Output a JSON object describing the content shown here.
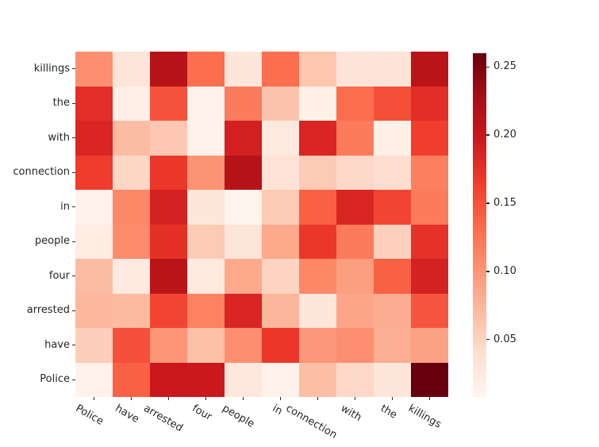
{
  "figure": {
    "background_color": "#ffffff",
    "text_color": "#262626"
  },
  "chart_data": {
    "type": "heatmap",
    "title": "",
    "xlabel": "",
    "ylabel": "",
    "x_labels": [
      "Police",
      "have",
      "arrested",
      "four",
      "people",
      "in",
      "connection",
      "with",
      "the",
      "killings"
    ],
    "y_labels": [
      "killings",
      "the",
      "with",
      "connection",
      "in",
      "people",
      "four",
      "arrested",
      "have",
      "Police"
    ],
    "values": [
      [
        0.105,
        0.032,
        0.214,
        0.131,
        0.03,
        0.131,
        0.062,
        0.033,
        0.034,
        0.211
      ],
      [
        0.176,
        0.017,
        0.15,
        0.012,
        0.12,
        0.063,
        0.016,
        0.13,
        0.152,
        0.177
      ],
      [
        0.184,
        0.07,
        0.061,
        0.013,
        0.191,
        0.026,
        0.185,
        0.121,
        0.016,
        0.164
      ],
      [
        0.165,
        0.048,
        0.169,
        0.102,
        0.215,
        0.036,
        0.058,
        0.046,
        0.041,
        0.117
      ],
      [
        0.012,
        0.11,
        0.189,
        0.031,
        0.011,
        0.058,
        0.14,
        0.184,
        0.159,
        0.121
      ],
      [
        0.022,
        0.107,
        0.175,
        0.058,
        0.032,
        0.085,
        0.169,
        0.12,
        0.053,
        0.174
      ],
      [
        0.07,
        0.024,
        0.211,
        0.026,
        0.085,
        0.05,
        0.11,
        0.093,
        0.14,
        0.189
      ],
      [
        0.074,
        0.071,
        0.159,
        0.115,
        0.185,
        0.075,
        0.031,
        0.087,
        0.082,
        0.148
      ],
      [
        0.055,
        0.151,
        0.1,
        0.066,
        0.105,
        0.169,
        0.097,
        0.105,
        0.081,
        0.091
      ],
      [
        0.013,
        0.14,
        0.199,
        0.197,
        0.028,
        0.013,
        0.068,
        0.046,
        0.031,
        0.26
      ]
    ],
    "colormap": "Reds",
    "colormap_stops": [
      "#fff5f0",
      "#fee0d2",
      "#fcbba1",
      "#fc9272",
      "#fb6a4a",
      "#ef3b2c",
      "#cb181d",
      "#a50f15",
      "#67000d"
    ],
    "vmin": 0.008,
    "vmax": 0.26,
    "grid": false,
    "legend_position": "none",
    "colorbar": {
      "position": "right",
      "tick_labels": [
        "0.25",
        "0.20",
        "0.15",
        "0.10",
        "0.05"
      ],
      "tick_values": [
        0.25,
        0.2,
        0.15,
        0.1,
        0.05
      ]
    },
    "x_tick_rotation_deg": 30
  }
}
